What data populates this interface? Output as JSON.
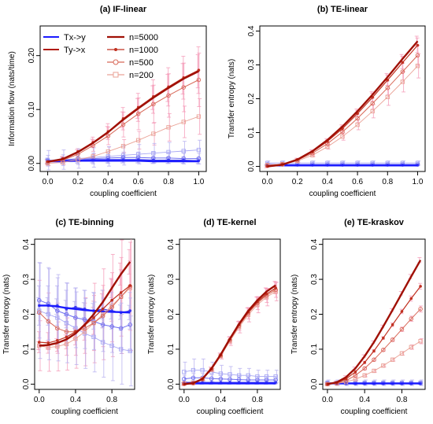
{
  "legend": {
    "directions": [
      {
        "label": "Tx->y",
        "color": "#1a1aff"
      },
      {
        "label": "Ty->x",
        "color": "#b01a0a"
      }
    ],
    "sizes": [
      {
        "label": "n=5000",
        "marker": "none"
      },
      {
        "label": "n=1000",
        "marker": "dot"
      },
      {
        "label": "n=500",
        "marker": "circle"
      },
      {
        "label": "n=200",
        "marker": "square"
      }
    ]
  },
  "colors": {
    "ty_n5000": "#a01005",
    "ty_n1000": "#c03020",
    "ty_n500": "#d86858",
    "ty_n200": "#eaa296",
    "tx_n5000": "#1a1aff",
    "tx_n1000": "#3c3cf0",
    "tx_n500": "#6e6ef0",
    "tx_n200": "#a8a8f4",
    "err_ty": "#f59ab8",
    "err_tx": "#b6b0f0"
  },
  "chart_data": [
    {
      "panel": "a",
      "type": "line",
      "title": "(a) IF-linear",
      "xlabel": "coupling coefficient",
      "ylabel": "Information flow (nats/time)",
      "xlim": [
        -0.05,
        1.05
      ],
      "ylim": [
        -0.015,
        0.255
      ],
      "xticks": [
        "0.0",
        "0.2",
        "0.4",
        "0.6",
        "0.8",
        "1.0"
      ],
      "yticks": [
        "0.00",
        "0.10",
        "0.20"
      ],
      "legend_position": "top-left",
      "x": [
        0,
        0.1,
        0.2,
        0.3,
        0.4,
        0.5,
        0.6,
        0.7,
        0.8,
        0.9,
        1.0
      ],
      "series": [
        {
          "name": "n=5000",
          "direction": "Ty->x",
          "values": [
            0.003,
            0.008,
            0.021,
            0.038,
            0.058,
            0.081,
            0.102,
            0.122,
            0.14,
            0.157,
            0.171
          ]
        },
        {
          "name": "n=1000",
          "direction": "Ty->x",
          "values": [
            0.003,
            0.009,
            0.022,
            0.039,
            0.059,
            0.083,
            0.104,
            0.124,
            0.142,
            0.159,
            0.173
          ]
        },
        {
          "name": "n=500",
          "direction": "Ty->x",
          "values": [
            0.002,
            0.006,
            0.017,
            0.033,
            0.051,
            0.072,
            0.092,
            0.11,
            0.126,
            0.141,
            0.155
          ]
        },
        {
          "name": "n=200",
          "direction": "Ty->x",
          "values": [
            0.0,
            0.002,
            0.007,
            0.013,
            0.022,
            0.032,
            0.043,
            0.055,
            0.067,
            0.077,
            0.087
          ]
        },
        {
          "name": "n=5000",
          "direction": "Tx->y",
          "values": [
            0.004,
            0.004,
            0.005,
            0.005,
            0.005,
            0.005,
            0.005,
            0.004,
            0.004,
            0.004,
            0.004
          ]
        },
        {
          "name": "n=1000",
          "direction": "Tx->y",
          "values": [
            0.004,
            0.005,
            0.006,
            0.007,
            0.007,
            0.007,
            0.007,
            0.006,
            0.006,
            0.006,
            0.005
          ]
        },
        {
          "name": "n=500",
          "direction": "Tx->y",
          "values": [
            0.005,
            0.006,
            0.008,
            0.009,
            0.01,
            0.011,
            0.011,
            0.01,
            0.01,
            0.009,
            0.009
          ]
        },
        {
          "name": "n=200",
          "direction": "Tx->y",
          "values": [
            0.006,
            0.007,
            0.009,
            0.011,
            0.013,
            0.015,
            0.017,
            0.019,
            0.021,
            0.023,
            0.025
          ]
        }
      ]
    },
    {
      "panel": "b",
      "type": "line",
      "title": "(b) TE-linear",
      "xlabel": "coupling coefficient",
      "ylabel": "Transfer entropy (nats)",
      "xlim": [
        -0.05,
        1.05
      ],
      "ylim": [
        -0.015,
        0.415
      ],
      "xticks": [
        "0.0",
        "0.2",
        "0.4",
        "0.6",
        "0.8",
        "1.0"
      ],
      "yticks": [
        "0.0",
        "0.1",
        "0.2",
        "0.3",
        "0.4"
      ],
      "x": [
        0,
        0.1,
        0.2,
        0.3,
        0.4,
        0.5,
        0.6,
        0.7,
        0.8,
        0.9,
        1.0
      ],
      "series": [
        {
          "name": "n=5000",
          "direction": "Ty->x",
          "values": [
            0.0,
            0.005,
            0.02,
            0.045,
            0.078,
            0.118,
            0.163,
            0.212,
            0.264,
            0.318,
            0.37
          ]
        },
        {
          "name": "n=1000",
          "direction": "Ty->x",
          "values": [
            0.001,
            0.006,
            0.02,
            0.043,
            0.074,
            0.112,
            0.156,
            0.204,
            0.255,
            0.307,
            0.358
          ]
        },
        {
          "name": "n=500",
          "direction": "Ty->x",
          "values": [
            0.002,
            0.006,
            0.018,
            0.039,
            0.067,
            0.102,
            0.142,
            0.186,
            0.232,
            0.28,
            0.328
          ]
        },
        {
          "name": "n=200",
          "direction": "Ty->x",
          "values": [
            0.004,
            0.007,
            0.016,
            0.033,
            0.058,
            0.088,
            0.123,
            0.163,
            0.205,
            0.25,
            0.297
          ]
        },
        {
          "name": "n=5000",
          "direction": "Tx->y",
          "values": [
            0.003,
            0.003,
            0.003,
            0.003,
            0.003,
            0.003,
            0.003,
            0.003,
            0.003,
            0.003,
            0.003
          ]
        },
        {
          "name": "n=1000",
          "direction": "Tx->y",
          "values": [
            0.004,
            0.004,
            0.004,
            0.004,
            0.004,
            0.004,
            0.004,
            0.004,
            0.004,
            0.004,
            0.004
          ]
        },
        {
          "name": "n=500",
          "direction": "Tx->y",
          "values": [
            0.006,
            0.006,
            0.006,
            0.006,
            0.006,
            0.006,
            0.006,
            0.006,
            0.006,
            0.006,
            0.006
          ]
        },
        {
          "name": "n=200",
          "direction": "Tx->y",
          "values": [
            0.01,
            0.01,
            0.01,
            0.01,
            0.01,
            0.01,
            0.01,
            0.01,
            0.01,
            0.01,
            0.01
          ]
        }
      ]
    },
    {
      "panel": "c",
      "type": "line",
      "title": "(c) TE-binning",
      "xlabel": "coupling coefficient",
      "ylabel": "Transfer entropy (nats)",
      "xlim": [
        -0.05,
        1.05
      ],
      "ylim": [
        -0.015,
        0.415
      ],
      "xticks": [
        "0.0",
        "0.4",
        "0.8"
      ],
      "yticks": [
        "0.0",
        "0.1",
        "0.2",
        "0.3",
        "0.4"
      ],
      "x": [
        0,
        0.1,
        0.2,
        0.3,
        0.4,
        0.5,
        0.6,
        0.7,
        0.8,
        0.9,
        1.0
      ],
      "series": [
        {
          "name": "n=5000",
          "direction": "Ty->x",
          "values": [
            0.11,
            0.112,
            0.118,
            0.128,
            0.145,
            0.17,
            0.2,
            0.235,
            0.275,
            0.315,
            0.35
          ]
        },
        {
          "name": "n=1000",
          "direction": "Ty->x",
          "values": [
            0.12,
            0.118,
            0.125,
            0.135,
            0.15,
            0.168,
            0.19,
            0.215,
            0.24,
            0.262,
            0.282
          ]
        },
        {
          "name": "n=500",
          "direction": "Ty->x",
          "values": [
            0.205,
            0.18,
            0.16,
            0.15,
            0.15,
            0.16,
            0.175,
            0.195,
            0.22,
            0.25,
            0.28
          ]
        },
        {
          "name": "n=200",
          "direction": "Ty->x",
          "values": [
            0.11,
            0.105,
            0.108,
            0.115,
            0.13,
            0.15,
            0.175,
            0.2,
            0.225,
            0.25,
            0.275
          ]
        },
        {
          "name": "n=5000",
          "direction": "Tx->y",
          "values": [
            0.225,
            0.225,
            0.222,
            0.218,
            0.215,
            0.212,
            0.21,
            0.208,
            0.207,
            0.206,
            0.205
          ]
        },
        {
          "name": "n=1000",
          "direction": "Tx->y",
          "values": [
            0.225,
            0.225,
            0.225,
            0.215,
            0.22,
            0.215,
            0.21,
            0.215,
            0.21,
            0.205,
            0.21
          ]
        },
        {
          "name": "n=500",
          "direction": "Tx->y",
          "values": [
            0.24,
            0.23,
            0.21,
            0.2,
            0.19,
            0.185,
            0.18,
            0.17,
            0.165,
            0.16,
            0.17
          ]
        },
        {
          "name": "n=200",
          "direction": "Tx->y",
          "values": [
            0.21,
            0.2,
            0.19,
            0.175,
            0.16,
            0.145,
            0.135,
            0.12,
            0.11,
            0.1,
            0.095
          ]
        }
      ]
    },
    {
      "panel": "d",
      "type": "line",
      "title": "(d) TE-kernel",
      "xlabel": "coupling coefficient",
      "ylabel": "Transfer entropy (nats)",
      "xlim": [
        -0.05,
        1.05
      ],
      "ylim": [
        -0.015,
        0.415
      ],
      "xticks": [
        "0.0",
        "0.4",
        "0.8"
      ],
      "yticks": [
        "0.0",
        "0.1",
        "0.2",
        "0.3",
        "0.4"
      ],
      "x": [
        0,
        0.1,
        0.2,
        0.3,
        0.4,
        0.5,
        0.6,
        0.7,
        0.8,
        0.9,
        1.0
      ],
      "series": [
        {
          "name": "n=5000",
          "direction": "Ty->x",
          "values": [
            0.0,
            0.003,
            0.015,
            0.045,
            0.085,
            0.13,
            0.172,
            0.21,
            0.24,
            0.265,
            0.283
          ]
        },
        {
          "name": "n=1000",
          "direction": "Ty->x",
          "values": [
            0.0,
            0.002,
            0.014,
            0.043,
            0.083,
            0.128,
            0.17,
            0.206,
            0.235,
            0.258,
            0.275
          ]
        },
        {
          "name": "n=500",
          "direction": "Ty->x",
          "values": [
            0.001,
            0.003,
            0.014,
            0.042,
            0.082,
            0.126,
            0.167,
            0.203,
            0.232,
            0.254,
            0.27
          ]
        },
        {
          "name": "n=200",
          "direction": "Ty->x",
          "values": [
            0.002,
            0.004,
            0.015,
            0.041,
            0.08,
            0.123,
            0.163,
            0.198,
            0.227,
            0.249,
            0.265
          ]
        },
        {
          "name": "n=5000",
          "direction": "Tx->y",
          "values": [
            0.002,
            0.002,
            0.002,
            0.002,
            0.002,
            0.002,
            0.002,
            0.002,
            0.002,
            0.002,
            0.002
          ]
        },
        {
          "name": "n=1000",
          "direction": "Tx->y",
          "values": [
            0.005,
            0.005,
            0.005,
            0.005,
            0.005,
            0.005,
            0.005,
            0.005,
            0.005,
            0.005,
            0.005
          ]
        },
        {
          "name": "n=500",
          "direction": "Tx->y",
          "values": [
            0.015,
            0.018,
            0.018,
            0.016,
            0.015,
            0.014,
            0.013,
            0.012,
            0.012,
            0.012,
            0.012
          ]
        },
        {
          "name": "n=200",
          "direction": "Tx->y",
          "values": [
            0.035,
            0.04,
            0.04,
            0.035,
            0.03,
            0.028,
            0.025,
            0.025,
            0.022,
            0.022,
            0.022
          ]
        }
      ]
    },
    {
      "panel": "e",
      "type": "line",
      "title": "(e) TE-kraskov",
      "xlabel": "coupling coefficient",
      "ylabel": "Transfer entropy (nats)",
      "xlim": [
        -0.05,
        1.05
      ],
      "ylim": [
        -0.015,
        0.415
      ],
      "xticks": [
        "0.0",
        "0.4",
        "0.8"
      ],
      "yticks": [
        "0.0",
        "0.1",
        "0.2",
        "0.3",
        "0.4"
      ],
      "x": [
        0,
        0.1,
        0.2,
        0.3,
        0.4,
        0.5,
        0.6,
        0.7,
        0.8,
        0.9,
        1.0
      ],
      "series": [
        {
          "name": "n=5000",
          "direction": "Ty->x",
          "values": [
            0.0,
            0.005,
            0.02,
            0.045,
            0.08,
            0.12,
            0.165,
            0.212,
            0.26,
            0.308,
            0.355
          ]
        },
        {
          "name": "n=1000",
          "direction": "Ty->x",
          "values": [
            0.0,
            0.004,
            0.015,
            0.035,
            0.062,
            0.095,
            0.132,
            0.17,
            0.208,
            0.245,
            0.28
          ]
        },
        {
          "name": "n=500",
          "direction": "Ty->x",
          "values": [
            0.0,
            0.003,
            0.01,
            0.025,
            0.045,
            0.07,
            0.098,
            0.127,
            0.157,
            0.187,
            0.215
          ]
        },
        {
          "name": "n=200",
          "direction": "Ty->x",
          "values": [
            0.0,
            0.002,
            0.006,
            0.014,
            0.025,
            0.038,
            0.053,
            0.07,
            0.088,
            0.106,
            0.123
          ]
        },
        {
          "name": "n=5000",
          "direction": "Tx->y",
          "values": [
            0.002,
            0.002,
            0.002,
            0.002,
            0.002,
            0.002,
            0.002,
            0.002,
            0.002,
            0.002,
            0.002
          ]
        },
        {
          "name": "n=1000",
          "direction": "Tx->y",
          "values": [
            0.002,
            0.002,
            0.002,
            0.002,
            0.002,
            0.002,
            0.002,
            0.002,
            0.002,
            0.002,
            0.002
          ]
        },
        {
          "name": "n=500",
          "direction": "Tx->y",
          "values": [
            0.003,
            0.003,
            0.003,
            0.003,
            0.003,
            0.003,
            0.003,
            0.003,
            0.003,
            0.003,
            0.003
          ]
        },
        {
          "name": "n=200",
          "direction": "Tx->y",
          "values": [
            0.004,
            0.004,
            0.004,
            0.004,
            0.004,
            0.004,
            0.004,
            0.004,
            0.004,
            0.004,
            0.004
          ]
        }
      ]
    }
  ]
}
